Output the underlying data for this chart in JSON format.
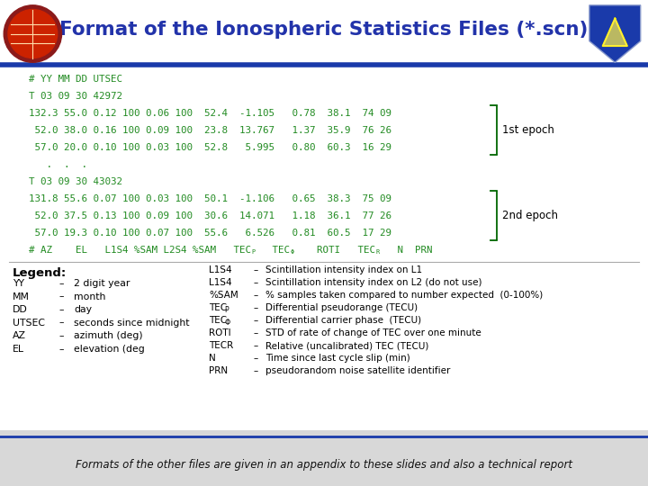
{
  "title": "Format of the Ionospheric Statistics Files (*.scn)",
  "title_color": "#2233aa",
  "header_bg": "#e8ecf8",
  "main_bg": "#ffffff",
  "footer_bg": "#e0e0e0",
  "code_color": "#228B22",
  "bracket_color": "#006600",
  "code_lines": [
    "# YY MM DD UTSEC",
    "T 03 09 30 42972",
    "132.3 55.0 0.12 100 0.06 100  52.4  -1.105   0.78  38.1  74 09",
    " 52.0 38.0 0.16 100 0.09 100  23.8  13.767   1.37  35.9  76 26",
    " 57.0 20.0 0.10 100 0.03 100  52.8   5.995   0.80  60.3  16 29",
    "   .  .  .",
    "T 03 09 30 43032",
    "131.8 55.6 0.07 100 0.03 100  50.1  -1.106   0.65  38.3  75 09",
    " 52.0 37.5 0.13 100 0.09 100  30.6  14.071   1.18  36.1  77 26",
    " 57.0 19.3 0.10 100 0.07 100  55.6   6.526   0.81  60.5  17 29"
  ],
  "col_header_prefix": "# AZ    EL   L1S4 %SAM L2S4 %SAM   TEC",
  "col_header_mid1": "   TEC",
  "col_header_mid2": "    ROTI   TEC",
  "col_header_suffix": "   N  PRN",
  "epoch1_label": "1st epoch",
  "epoch2_label": "2nd epoch",
  "footer_text": "Formats of the other files are given in an appendix to these slides and also a technical report",
  "legend_title": "Legend:",
  "legend_left": [
    [
      "YY",
      "2 digit year"
    ],
    [
      "MM",
      "month"
    ],
    [
      "DD",
      "day"
    ],
    [
      "UTSEC",
      "seconds since midnight"
    ],
    [
      "AZ",
      "azimuth (deg)"
    ],
    [
      "EL",
      "elevation (deg"
    ]
  ],
  "legend_right": [
    [
      "L1S4",
      "Scintillation intensity index on L1"
    ],
    [
      "L1S4",
      "Scintillation intensity index on L2 (do not use)"
    ],
    [
      "%SAM",
      "% samples taken compared to number expected  (0-100%)"
    ],
    [
      "TECP",
      "Differential pseudorange (TECU)"
    ],
    [
      "TECO",
      "Differential carrier phase  (TECU)"
    ],
    [
      "ROTI",
      "STD of rate of change of TEC over one minute"
    ],
    [
      "TECR",
      "Relative (uncalibrated) TEC (TECU)"
    ],
    [
      "N",
      "Time since last cycle slip (min)"
    ],
    [
      "PRN",
      "pseudorandom noise satellite identifier"
    ]
  ]
}
